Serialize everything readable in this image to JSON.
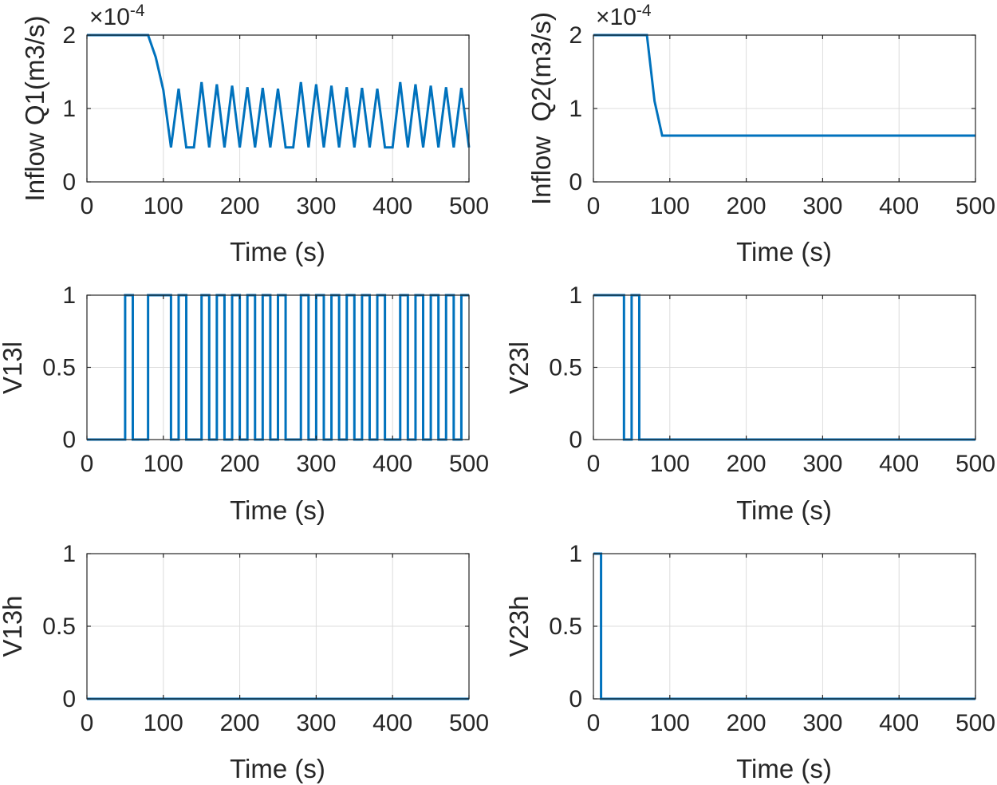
{
  "chart_data": [
    {
      "id": "q1",
      "type": "line",
      "title": "",
      "xlabel": "Time (s)",
      "ylabel": "Inflow Q1(m3/s)",
      "exponent": {
        "base": "×10",
        "power": "-4"
      },
      "xlim": [
        0,
        500
      ],
      "ylim": [
        0,
        2
      ],
      "xticks": [
        0,
        100,
        200,
        300,
        400,
        500
      ],
      "yticks": [
        0,
        1,
        2
      ],
      "ytick_labels": [
        "0",
        "1",
        "2"
      ],
      "grid": true,
      "color": "#0072BD",
      "series": [
        {
          "name": "Q1",
          "x": [
            0,
            80,
            90,
            100,
            110,
            120,
            130,
            140,
            150,
            160,
            170,
            180,
            190,
            200,
            210,
            220,
            230,
            240,
            250,
            260,
            270,
            280,
            290,
            300,
            310,
            320,
            330,
            340,
            350,
            360,
            370,
            380,
            390,
            400,
            410,
            420,
            430,
            440,
            450,
            460,
            470,
            480,
            490,
            500
          ],
          "y": [
            2.0,
            2.0,
            1.7,
            1.25,
            0.47,
            1.27,
            0.47,
            0.47,
            1.36,
            0.47,
            1.33,
            0.47,
            1.31,
            0.47,
            1.29,
            0.47,
            1.28,
            0.47,
            1.27,
            0.47,
            0.47,
            1.36,
            0.47,
            1.33,
            0.47,
            1.31,
            0.47,
            1.29,
            0.47,
            1.28,
            0.47,
            1.27,
            0.47,
            0.47,
            1.36,
            0.47,
            1.33,
            0.47,
            1.31,
            0.47,
            1.29,
            0.47,
            1.28,
            0.47
          ]
        }
      ]
    },
    {
      "id": "q2",
      "type": "line",
      "title": "",
      "xlabel": "Time (s)",
      "ylabel": "Inflow  Q2(m3/s)",
      "exponent": {
        "base": "×10",
        "power": "-4"
      },
      "xlim": [
        0,
        500
      ],
      "ylim": [
        0,
        2
      ],
      "xticks": [
        0,
        100,
        200,
        300,
        400,
        500
      ],
      "yticks": [
        0,
        1,
        2
      ],
      "ytick_labels": [
        "0",
        "1",
        "2"
      ],
      "grid": true,
      "color": "#0072BD",
      "series": [
        {
          "name": "Q2",
          "x": [
            0,
            70,
            80,
            90,
            500
          ],
          "y": [
            2.0,
            2.0,
            1.1,
            0.63,
            0.63
          ]
        }
      ]
    },
    {
      "id": "v13l",
      "type": "line",
      "title": "",
      "xlabel": "Time (s)",
      "ylabel": "V13l",
      "xlim": [
        0,
        500
      ],
      "ylim": [
        0,
        1
      ],
      "xticks": [
        0,
        100,
        200,
        300,
        400,
        500
      ],
      "yticks": [
        0,
        0.5,
        1
      ],
      "ytick_labels": [
        "0",
        "0.5",
        "1"
      ],
      "grid": true,
      "color": "#0072BD",
      "series": [
        {
          "name": "V13l",
          "x": [
            0,
            50,
            50,
            60,
            60,
            80,
            80,
            110,
            110,
            120,
            120,
            130,
            130,
            150,
            150,
            160,
            160,
            170,
            170,
            180,
            180,
            190,
            190,
            200,
            200,
            210,
            210,
            220,
            220,
            230,
            230,
            240,
            240,
            250,
            250,
            260,
            260,
            280,
            280,
            290,
            290,
            300,
            300,
            310,
            310,
            320,
            320,
            330,
            330,
            340,
            340,
            350,
            350,
            360,
            360,
            370,
            370,
            380,
            380,
            390,
            390,
            410,
            410,
            420,
            420,
            430,
            430,
            440,
            440,
            450,
            450,
            460,
            460,
            470,
            470,
            480,
            480,
            490,
            490,
            500
          ],
          "y": [
            0,
            0,
            1,
            1,
            0,
            0,
            1,
            1,
            0,
            0,
            1,
            1,
            0,
            0,
            1,
            1,
            0,
            0,
            1,
            1,
            0,
            0,
            1,
            1,
            0,
            0,
            1,
            1,
            0,
            0,
            1,
            1,
            0,
            0,
            1,
            1,
            0,
            0,
            1,
            1,
            0,
            0,
            1,
            1,
            0,
            0,
            1,
            1,
            0,
            0,
            1,
            1,
            0,
            0,
            1,
            1,
            0,
            0,
            1,
            1,
            0,
            0,
            1,
            1,
            0,
            0,
            1,
            1,
            0,
            0,
            1,
            1,
            0,
            0,
            1,
            1,
            0,
            0,
            1,
            1
          ]
        }
      ]
    },
    {
      "id": "v23l",
      "type": "line",
      "title": "",
      "xlabel": "Time (s)",
      "ylabel": "V23l",
      "xlim": [
        0,
        500
      ],
      "ylim": [
        0,
        1
      ],
      "xticks": [
        0,
        100,
        200,
        300,
        400,
        500
      ],
      "yticks": [
        0,
        0.5,
        1
      ],
      "ytick_labels": [
        "0",
        "0.5",
        "1"
      ],
      "grid": true,
      "color": "#0072BD",
      "series": [
        {
          "name": "V23l",
          "x": [
            0,
            40,
            40,
            50,
            50,
            60,
            60,
            500
          ],
          "y": [
            1,
            1,
            0,
            0,
            1,
            1,
            0,
            0
          ]
        }
      ]
    },
    {
      "id": "v13h",
      "type": "line",
      "title": "",
      "xlabel": "Time (s)",
      "ylabel": "V13h",
      "xlim": [
        0,
        500
      ],
      "ylim": [
        0,
        1
      ],
      "xticks": [
        0,
        100,
        200,
        300,
        400,
        500
      ],
      "yticks": [
        0,
        0.5,
        1
      ],
      "ytick_labels": [
        "0",
        "0.5",
        "1"
      ],
      "grid": true,
      "color": "#0072BD",
      "series": [
        {
          "name": "V13h",
          "x": [
            0,
            500
          ],
          "y": [
            0,
            0
          ]
        }
      ]
    },
    {
      "id": "v23h",
      "type": "line",
      "title": "",
      "xlabel": "Time (s)",
      "ylabel": "V23h",
      "xlim": [
        0,
        500
      ],
      "ylim": [
        0,
        1
      ],
      "xticks": [
        0,
        100,
        200,
        300,
        400,
        500
      ],
      "yticks": [
        0,
        0.5,
        1
      ],
      "ytick_labels": [
        "0",
        "0.5",
        "1"
      ],
      "grid": true,
      "color": "#0072BD",
      "series": [
        {
          "name": "V23h",
          "x": [
            0,
            10,
            10,
            500
          ],
          "y": [
            1,
            1,
            0,
            0
          ]
        }
      ]
    }
  ]
}
